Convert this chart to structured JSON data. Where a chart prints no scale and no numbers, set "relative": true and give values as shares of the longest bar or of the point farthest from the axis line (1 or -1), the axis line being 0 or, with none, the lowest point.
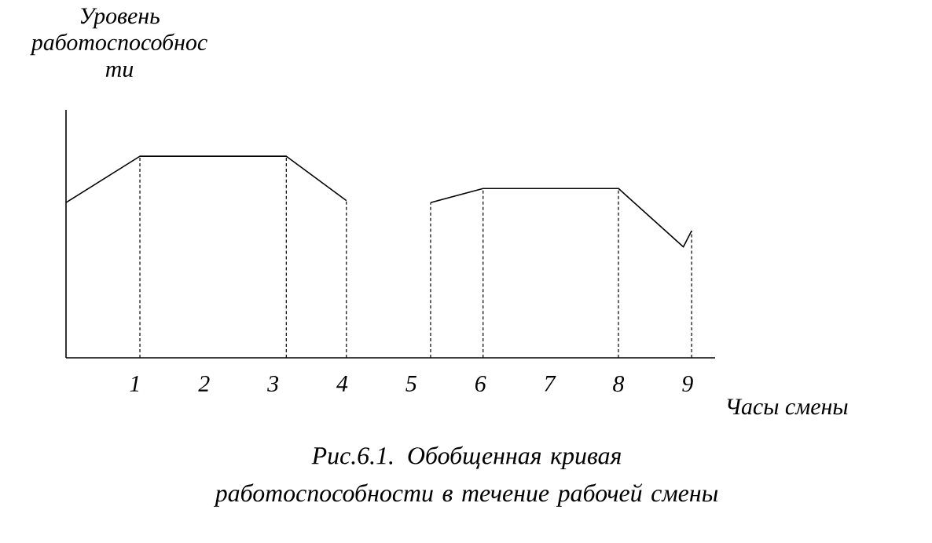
{
  "chart_data": {
    "type": "line",
    "relative": true,
    "ylabel": "Уровень работоспособнос ти",
    "xlabel": "Часы смены",
    "annotations": [
      "Рис.6.1. Обобщенная кривая работоспособности в течение рабочей смены"
    ],
    "x": [
      0,
      1.07,
      3.19,
      4.06,
      4.6,
      5.28,
      6.04,
      8.0,
      8.94,
      9.06
    ],
    "series": [
      {
        "color": "#000000",
        "values": [
          0.77,
          1,
          1,
          0.78,
          null,
          0.77,
          0.84,
          0.84,
          0.55,
          0.63
        ]
      }
    ],
    "xlim": [
      0,
      9.4
    ],
    "xticks": [
      1,
      2,
      3,
      4,
      5,
      6,
      7,
      8,
      9
    ],
    "ref_lines": [
      {
        "axis": "x",
        "value": 1.07,
        "line_style": "dashed"
      },
      {
        "axis": "x",
        "value": 3.19,
        "line_style": "dashed"
      },
      {
        "axis": "x",
        "value": 4.06,
        "line_style": "dashed"
      },
      {
        "axis": "x",
        "value": 5.28,
        "line_style": "dashed"
      },
      {
        "axis": "x",
        "value": 6.04,
        "line_style": "dashed"
      },
      {
        "axis": "x",
        "value": 8.0,
        "line_style": "dashed"
      },
      {
        "axis": "x",
        "value": 9.06,
        "line_style": "dashed"
      }
    ],
    "grid": false,
    "marker": "none",
    "line_style": "solid"
  }
}
